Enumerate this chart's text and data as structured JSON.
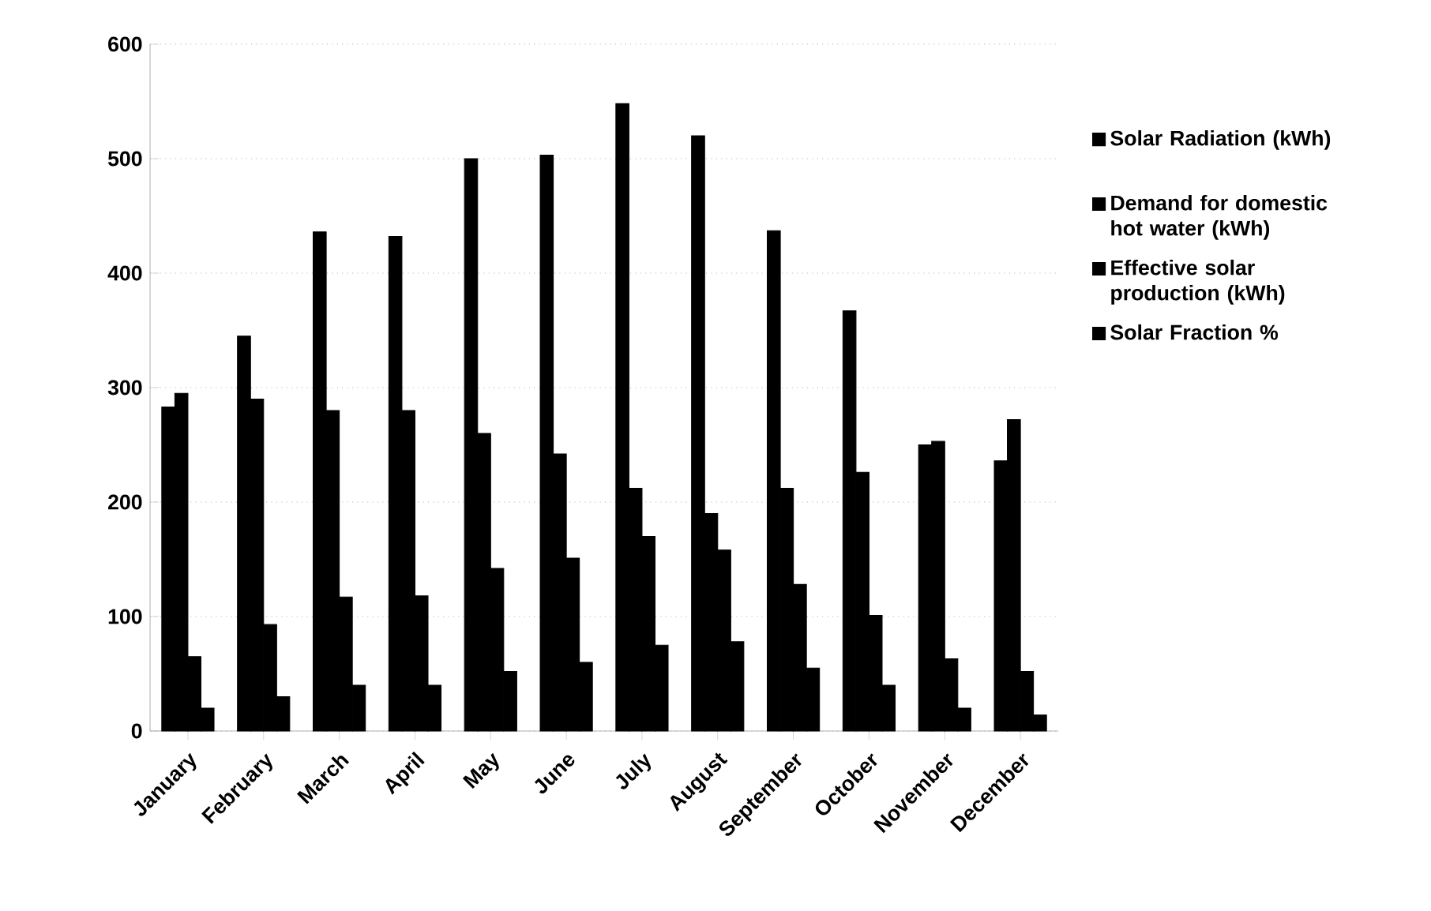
{
  "chart_data": {
    "type": "bar",
    "categories": [
      "January",
      "February",
      "March",
      "April",
      "May",
      "June",
      "July",
      "August",
      "September",
      "October",
      "November",
      "December"
    ],
    "series": [
      {
        "name": "Solar Radiation (kWh)",
        "color": "#000000",
        "values": [
          283,
          345,
          436,
          432,
          500,
          503,
          548,
          520,
          437,
          367,
          250,
          236
        ]
      },
      {
        "name": "Demand for domestic hot water (kWh)",
        "color": "#000000",
        "values": [
          295,
          290,
          280,
          280,
          260,
          242,
          212,
          190,
          212,
          226,
          253,
          272
        ]
      },
      {
        "name": "Effective solar production  (kWh)",
        "color": "#000000",
        "values": [
          65,
          93,
          117,
          118,
          142,
          151,
          170,
          158,
          128,
          101,
          63,
          52
        ]
      },
      {
        "name": "Solar Fraction %",
        "color": "#000000",
        "values": [
          20,
          30,
          40,
          40,
          52,
          60,
          75,
          78,
          55,
          40,
          20,
          14
        ]
      }
    ],
    "ylim": [
      0,
      600
    ],
    "yticks": [
      0,
      100,
      200,
      300,
      400,
      500,
      600
    ],
    "grid": "y",
    "legend": "right"
  }
}
